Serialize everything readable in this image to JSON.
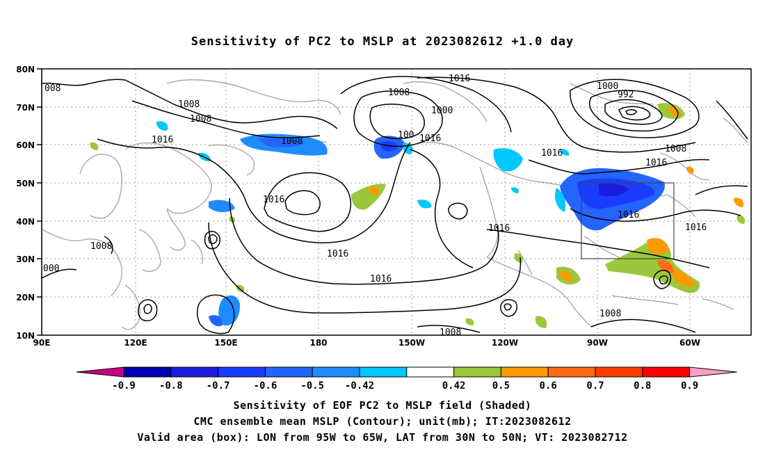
{
  "title": "Sensitivity of PC2 to MSLP at 2023082612 +1.0 day",
  "map": {
    "lat_labels": [
      "80N",
      "70N",
      "60N",
      "50N",
      "40N",
      "30N",
      "20N",
      "10N"
    ],
    "lon_labels": [
      "90E",
      "120E",
      "150E",
      "180",
      "150W",
      "120W",
      "90W",
      "60W"
    ],
    "contour_labels": [
      "008",
      "1008",
      "1008",
      "1016",
      "1016",
      "1008",
      "1016",
      "1016",
      "1008",
      "1000",
      "100",
      "1016",
      "1016",
      "1000",
      "992",
      "1008",
      "1016",
      "1016",
      "1016",
      "1016",
      "1016",
      "1008",
      "1008",
      "000"
    ],
    "valid_box": {
      "lon_west": "95W",
      "lon_east": "65W",
      "lat_south": "30N",
      "lat_north": "50N"
    }
  },
  "colorbar": {
    "labels": [
      "-0.9",
      "-0.8",
      "-0.7",
      "-0.6",
      "-0.5",
      "-0.42",
      "0.42",
      "0.5",
      "0.6",
      "0.7",
      "0.8",
      "0.9"
    ],
    "colors": [
      "#0000b4",
      "#1c1cdc",
      "#1a3cff",
      "#2464ff",
      "#1e8cff",
      "#00c8ff",
      "#ffffff",
      "#9ac83c",
      "#ff9a00",
      "#ff6a14",
      "#ff3c00",
      "#ff0000"
    ],
    "low_end": "#c8007e",
    "high_end": "#f8a0c8"
  },
  "captions": {
    "line1": "Sensitivity of EOF PC2 to MSLP field (Shaded)",
    "line2": "CMC ensemble mean MSLP (Contour); unit(mb); IT:2023082612",
    "line3": "Valid area (box): LON from 95W to 65W, LAT from 30N to 50N; VT: 2023082712"
  }
}
